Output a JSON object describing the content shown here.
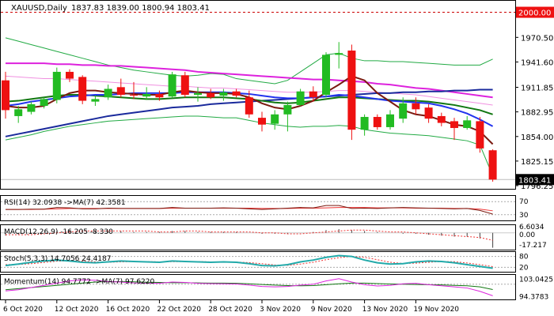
{
  "chart_data": {
    "type": "candlestick",
    "title": "XAUUSD,Daily",
    "ohlc_header": "1837.83 1839.00 1800.94 1803.41",
    "colors": {
      "bull": "#22bb22",
      "bear": "#ee1111",
      "up_fill": "#22bb22",
      "down_fill": "#ee1111"
    },
    "main": {
      "y_range": [
        1796.25,
        2007
      ],
      "y_ticks": [
        "2000.00",
        "1970.50",
        "1941.60",
        "1911.85",
        "1882.95",
        "1854.00",
        "1825.15",
        "1796.25"
      ],
      "last_price": "1803.41",
      "resistance_label": "2000.00",
      "resistance_value": 2000,
      "candles": [
        {
          "o": 1920,
          "h": 1930,
          "l": 1875,
          "c": 1885
        },
        {
          "o": 1878,
          "h": 1890,
          "l": 1870,
          "c": 1886
        },
        {
          "o": 1883,
          "h": 1895,
          "l": 1880,
          "c": 1892
        },
        {
          "o": 1890,
          "h": 1900,
          "l": 1887,
          "c": 1898
        },
        {
          "o": 1897,
          "h": 1935,
          "l": 1893,
          "c": 1930
        },
        {
          "o": 1930,
          "h": 1933,
          "l": 1918,
          "c": 1922
        },
        {
          "o": 1924,
          "h": 1926,
          "l": 1892,
          "c": 1896
        },
        {
          "o": 1895,
          "h": 1902,
          "l": 1890,
          "c": 1898
        },
        {
          "o": 1900,
          "h": 1915,
          "l": 1897,
          "c": 1910
        },
        {
          "o": 1912,
          "h": 1922,
          "l": 1900,
          "c": 1903
        },
        {
          "o": 1903,
          "h": 1918,
          "l": 1898,
          "c": 1902
        },
        {
          "o": 1901,
          "h": 1912,
          "l": 1897,
          "c": 1904
        },
        {
          "o": 1904,
          "h": 1908,
          "l": 1896,
          "c": 1900
        },
        {
          "o": 1901,
          "h": 1930,
          "l": 1899,
          "c": 1927
        },
        {
          "o": 1926,
          "h": 1930,
          "l": 1900,
          "c": 1903
        },
        {
          "o": 1903,
          "h": 1912,
          "l": 1895,
          "c": 1905
        },
        {
          "o": 1905,
          "h": 1910,
          "l": 1898,
          "c": 1900
        },
        {
          "o": 1902,
          "h": 1910,
          "l": 1896,
          "c": 1906
        },
        {
          "o": 1907,
          "h": 1910,
          "l": 1900,
          "c": 1902
        },
        {
          "o": 1900,
          "h": 1908,
          "l": 1876,
          "c": 1880
        },
        {
          "o": 1876,
          "h": 1883,
          "l": 1860,
          "c": 1868
        },
        {
          "o": 1869,
          "h": 1885,
          "l": 1862,
          "c": 1880
        },
        {
          "o": 1880,
          "h": 1895,
          "l": 1860,
          "c": 1891
        },
        {
          "o": 1891,
          "h": 1910,
          "l": 1890,
          "c": 1907
        },
        {
          "o": 1907,
          "h": 1913,
          "l": 1895,
          "c": 1900
        },
        {
          "o": 1903,
          "h": 1953,
          "l": 1900,
          "c": 1950
        },
        {
          "o": 1950,
          "h": 1965,
          "l": 1934,
          "c": 1952
        },
        {
          "o": 1955,
          "h": 1962,
          "l": 1850,
          "c": 1862
        },
        {
          "o": 1862,
          "h": 1880,
          "l": 1855,
          "c": 1877
        },
        {
          "o": 1877,
          "h": 1880,
          "l": 1862,
          "c": 1865
        },
        {
          "o": 1865,
          "h": 1885,
          "l": 1862,
          "c": 1880
        },
        {
          "o": 1875,
          "h": 1900,
          "l": 1870,
          "c": 1893
        },
        {
          "o": 1893,
          "h": 1900,
          "l": 1880,
          "c": 1886
        },
        {
          "o": 1888,
          "h": 1892,
          "l": 1870,
          "c": 1875
        },
        {
          "o": 1878,
          "h": 1882,
          "l": 1866,
          "c": 1870
        },
        {
          "o": 1872,
          "h": 1876,
          "l": 1850,
          "c": 1864
        },
        {
          "o": 1864,
          "h": 1878,
          "l": 1862,
          "c": 1873
        },
        {
          "o": 1872,
          "h": 1877,
          "l": 1835,
          "c": 1840
        },
        {
          "o": 1837.83,
          "h": 1839.0,
          "l": 1800.94,
          "c": 1803.41
        }
      ],
      "lines": [
        {
          "name": "bb-upper",
          "color": "#22aa44",
          "width": 1,
          "values": [
            1970,
            1966,
            1962,
            1958,
            1954,
            1950,
            1946,
            1942,
            1938,
            1935,
            1932,
            1930,
            1928,
            1926,
            1925,
            1926,
            1928,
            1927,
            1922,
            1920,
            1918,
            1916,
            1920,
            1930,
            1940,
            1950,
            1952,
            1946,
            1943,
            1943,
            1942,
            1942,
            1941,
            1940,
            1939,
            1938,
            1938,
            1938,
            1945
          ]
        },
        {
          "name": "bb-lower",
          "color": "#22aa44",
          "width": 1,
          "values": [
            1850,
            1853,
            1856,
            1860,
            1863,
            1866,
            1868,
            1870,
            1872,
            1873,
            1874,
            1875,
            1876,
            1877,
            1878,
            1878,
            1877,
            1876,
            1876,
            1873,
            1870,
            1868,
            1866,
            1865,
            1866,
            1866,
            1867,
            1866,
            1862,
            1860,
            1858,
            1857,
            1856,
            1855,
            1853,
            1851,
            1849,
            1844,
            1808
          ]
        },
        {
          "name": "ma-magenta",
          "color": "#dd22dd",
          "width": 2,
          "values": [
            1940,
            1940,
            1940,
            1940,
            1939,
            1939,
            1938,
            1938,
            1937,
            1937,
            1936,
            1935,
            1934,
            1933,
            1932,
            1930,
            1929,
            1928,
            1927,
            1926,
            1925,
            1924,
            1923,
            1922,
            1921,
            1921,
            1920,
            1919,
            1918,
            1916,
            1915,
            1913,
            1911,
            1910,
            1908,
            1906,
            1904,
            1902,
            1900
          ]
        },
        {
          "name": "ma-pink",
          "color": "#f090e0",
          "width": 1,
          "values": [
            1925,
            1924,
            1923,
            1922,
            1922,
            1921,
            1920,
            1919,
            1918,
            1917,
            1916,
            1915,
            1914,
            1913,
            1913,
            1912,
            1911,
            1911,
            1910,
            1909,
            1908,
            1907,
            1906,
            1906,
            1906,
            1907,
            1908,
            1908,
            1907,
            1906,
            1905,
            1904,
            1903,
            1901,
            1899,
            1897,
            1895,
            1893,
            1891
          ]
        },
        {
          "name": "ma-navy",
          "color": "#1a2a9c",
          "width": 2,
          "values": [
            1854,
            1857,
            1860,
            1863,
            1866,
            1869,
            1872,
            1875,
            1878,
            1880,
            1882,
            1884,
            1886,
            1888,
            1889,
            1890,
            1892,
            1893,
            1894,
            1895,
            1896,
            1897,
            1898,
            1899,
            1900,
            1901,
            1902,
            1903,
            1904,
            1905,
            1905,
            1906,
            1906,
            1907,
            1907,
            1908,
            1908,
            1909,
            1909
          ]
        },
        {
          "name": "ma-green",
          "color": "#117711",
          "width": 2,
          "values": [
            1895,
            1896,
            1898,
            1900,
            1902,
            1903,
            1903,
            1902,
            1901,
            1900,
            1899,
            1898,
            1898,
            1899,
            1900,
            1900,
            1900,
            1900,
            1899,
            1898,
            1896,
            1894,
            1893,
            1894,
            1896,
            1898,
            1900,
            1900,
            1899,
            1898,
            1897,
            1896,
            1896,
            1895,
            1893,
            1891,
            1888,
            1885,
            1880
          ]
        },
        {
          "name": "ma-blue",
          "color": "#2233ee",
          "width": 2,
          "values": [
            1890,
            1892,
            1895,
            1897,
            1899,
            1901,
            1902,
            1903,
            1903,
            1904,
            1905,
            1905,
            1905,
            1905,
            1906,
            1906,
            1906,
            1906,
            1905,
            1904,
            1902,
            1900,
            1899,
            1899,
            1900,
            1901,
            1903,
            1902,
            1900,
            1898,
            1896,
            1895,
            1894,
            1893,
            1890,
            1886,
            1881,
            1874,
            1866
          ]
        },
        {
          "name": "ma-brown",
          "color": "#7a1a10",
          "width": 2,
          "values": [
            1890,
            1888,
            1888,
            1890,
            1898,
            1905,
            1908,
            1908,
            1906,
            1905,
            1904,
            1903,
            1903,
            1906,
            1908,
            1906,
            1905,
            1905,
            1904,
            1900,
            1893,
            1888,
            1886,
            1890,
            1896,
            1906,
            1915,
            1925,
            1920,
            1905,
            1895,
            1885,
            1880,
            1878,
            1873,
            1868,
            1866,
            1860,
            1845
          ]
        }
      ]
    },
    "rsi": {
      "label": "RSI(14) 32.0938 ->MA(7) 42.3581",
      "ticks": [
        "70",
        "30"
      ],
      "values": [
        46,
        46,
        47,
        47,
        52,
        51,
        48,
        48,
        50,
        49,
        49,
        49,
        49,
        52,
        50,
        50,
        50,
        51,
        50,
        48,
        46,
        48,
        50,
        52,
        51,
        58,
        58,
        49,
        50,
        49,
        51,
        52,
        51,
        50,
        49,
        48,
        49,
        43,
        32
      ],
      "ma": [
        46,
        46,
        46,
        47,
        48,
        49,
        49,
        49,
        49,
        49,
        49,
        49,
        49,
        50,
        50,
        50,
        50,
        50,
        50,
        50,
        49,
        49,
        49,
        50,
        50,
        51,
        52,
        52,
        52,
        51,
        51,
        51,
        50,
        50,
        50,
        49,
        49,
        47,
        42
      ]
    },
    "macd": {
      "label": "MACD(12,26,9) -16.205 -8.330",
      "ticks": [
        "6.6034",
        "0.00",
        "-17.217"
      ],
      "histogram": [
        -3,
        -2,
        -1,
        0,
        2,
        3,
        3,
        2,
        2,
        2,
        1,
        1,
        1,
        2,
        2,
        1,
        1,
        1,
        1,
        0,
        -1,
        -1,
        -1,
        0,
        1,
        3,
        4,
        3,
        2,
        1,
        0,
        -1,
        -1,
        -2,
        -3,
        -4,
        -4,
        -6,
        -16
      ],
      "signal": [
        -2,
        -2,
        -2,
        -1,
        0,
        1,
        2,
        2,
        2,
        2,
        2,
        2,
        1,
        1,
        2,
        2,
        1,
        1,
        1,
        1,
        0,
        0,
        -1,
        -1,
        0,
        1,
        2,
        3,
        3,
        2,
        1,
        1,
        0,
        -1,
        -2,
        -3,
        -4,
        -5,
        -8
      ]
    },
    "stoch": {
      "label": "Stoch(5,3,3) 14.7056 24.4187",
      "ticks": [
        "80",
        "20"
      ],
      "k": [
        30,
        38,
        48,
        55,
        60,
        55,
        48,
        45,
        50,
        55,
        52,
        50,
        48,
        55,
        52,
        50,
        48,
        50,
        48,
        40,
        30,
        28,
        35,
        50,
        60,
        75,
        85,
        80,
        60,
        45,
        38,
        40,
        50,
        55,
        52,
        45,
        35,
        25,
        15
      ],
      "d": [
        35,
        36,
        40,
        47,
        54,
        56,
        54,
        50,
        48,
        50,
        52,
        52,
        50,
        51,
        52,
        52,
        50,
        49,
        49,
        46,
        40,
        33,
        31,
        38,
        48,
        62,
        73,
        80,
        75,
        62,
        48,
        41,
        43,
        48,
        52,
        51,
        44,
        35,
        24
      ]
    },
    "momentum": {
      "label": "Momentum(14) 94.7772 ->MA(7) 97.6220",
      "ticks": [
        "103.0425",
        "94.3783"
      ],
      "values": [
        97,
        97.5,
        98.5,
        99.5,
        100.5,
        101.5,
        102,
        101.8,
        101.2,
        101,
        100.6,
        100.5,
        100.4,
        101,
        100.8,
        100.4,
        100.3,
        100.2,
        100.1,
        99.6,
        99,
        98.8,
        99,
        99.6,
        100,
        101.5,
        102.5,
        101,
        99.8,
        99.2,
        99.5,
        100.2,
        100.4,
        99.8,
        99.3,
        98.8,
        98.3,
        96.8,
        94.8
      ],
      "ma": [
        97.5,
        98,
        98.5,
        99,
        99.5,
        100,
        100.5,
        101,
        101.2,
        101.2,
        101.1,
        100.9,
        100.8,
        100.7,
        100.7,
        100.6,
        100.5,
        100.5,
        100.4,
        100.2,
        99.9,
        99.6,
        99.4,
        99.3,
        99.4,
        99.8,
        100.2,
        100.5,
        100.5,
        100.3,
        100.1,
        100,
        99.9,
        99.8,
        99.7,
        99.5,
        99.3,
        98.8,
        97.6
      ]
    },
    "x_labels": [
      {
        "label": "6 Oct 2020",
        "index": 0
      },
      {
        "label": "12 Oct 2020",
        "index": 4
      },
      {
        "label": "16 Oct 2020",
        "index": 8
      },
      {
        "label": "22 Oct 2020",
        "index": 12
      },
      {
        "label": "28 Oct 2020",
        "index": 16
      },
      {
        "label": "3 Nov 2020",
        "index": 20
      },
      {
        "label": "9 Nov 2020",
        "index": 24
      },
      {
        "label": "13 Nov 2020",
        "index": 28
      },
      {
        "label": "19 Nov 2020",
        "index": 32
      }
    ]
  }
}
